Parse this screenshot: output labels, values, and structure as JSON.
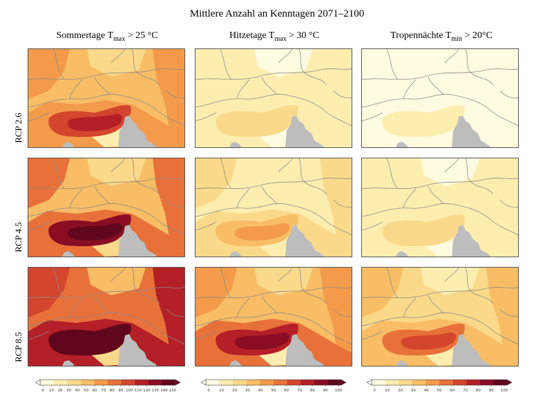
{
  "figure": {
    "title": "Mittlere Anzahl an Kenntagen 2071–2100",
    "columns": [
      {
        "text": "Sommertage  T",
        "sub": "max",
        "suffix": " > 25 °C"
      },
      {
        "text": "Hitzetage  T",
        "sub": "max",
        "suffix": " > 30 °C"
      },
      {
        "text": "Tropennächte  T",
        "sub": "min",
        "suffix": " > 20°C"
      }
    ],
    "rows": [
      "RCP 2.6",
      "RCP 4.5",
      "RCP 8.5"
    ]
  },
  "panels": [
    [
      {
        "intensity": 0.55
      },
      {
        "intensity": 0.18
      },
      {
        "intensity": 0.1
      }
    ],
    [
      {
        "intensity": 0.68
      },
      {
        "intensity": 0.32
      },
      {
        "intensity": 0.2
      }
    ],
    [
      {
        "intensity": 0.88
      },
      {
        "intensity": 0.6
      },
      {
        "intensity": 0.42
      }
    ]
  ],
  "colorbars": [
    {
      "ticks": [
        "0",
        "10",
        "20",
        "30",
        "40",
        "50",
        "60",
        "70",
        "80",
        "90",
        "100",
        "110",
        "120",
        "130",
        "140",
        "150"
      ]
    },
    {
      "ticks": [
        "0",
        "10",
        "20",
        "30",
        "40",
        "50",
        "60",
        "70",
        "80",
        "90",
        "100"
      ]
    },
    {
      "ticks": [
        "0",
        "10",
        "20",
        "30",
        "40",
        "50",
        "60",
        "70",
        "80",
        "90",
        "100"
      ]
    }
  ],
  "colors": {
    "scale": [
      "#fffbe0",
      "#fdeeb0",
      "#fbd98a",
      "#f8bd65",
      "#f39b4b",
      "#e8713a",
      "#d4452e",
      "#b51f27",
      "#8a0d24",
      "#60071d"
    ],
    "sea": "#bdbdbd",
    "borders": "#8a8a8a"
  }
}
